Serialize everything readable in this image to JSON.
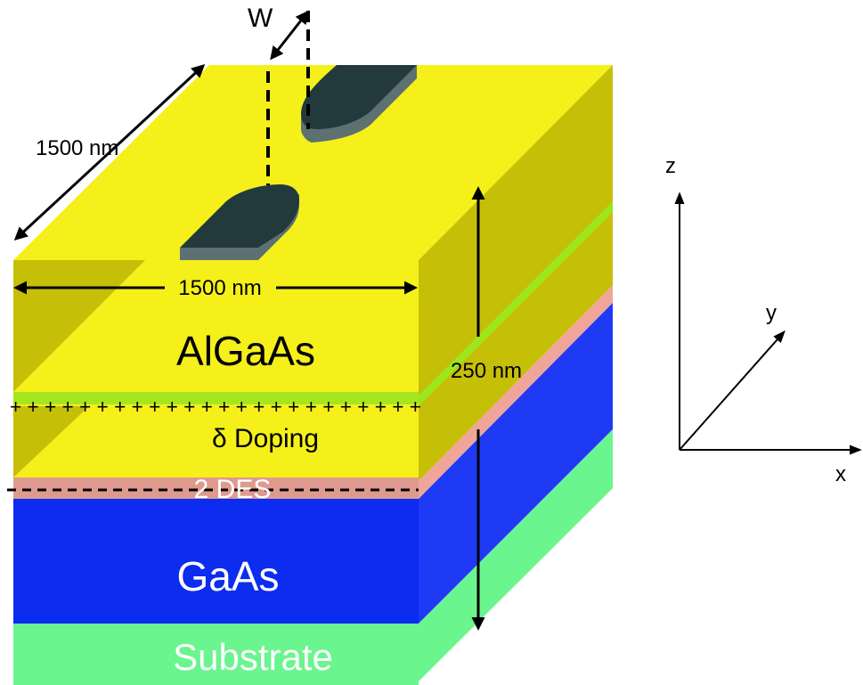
{
  "labels": {
    "w": "W",
    "depth_dim": "1500 nm",
    "width_dim": "1500 nm",
    "thickness_dim": "250 nm",
    "algaas": "AlGaAs",
    "doping_plus": "+ + + + + + + + + + + + + + + + + + + + + + + +",
    "doping": "δ Doping",
    "des": "2 DES",
    "gaas": "GaAs",
    "substrate": "Substrate",
    "axis_z": "z",
    "axis_y": "y",
    "axis_x": "x"
  },
  "colors": {
    "algaas_front": "#f5f01a",
    "algaas_top": "#f5f01a",
    "algaas_side": "#c6bf08",
    "doping_layer": "#a6e61e",
    "doping_side": "#9de51c",
    "des_front": "#df9a8e",
    "des_side": "#f0a59b",
    "gaas_front": "#0c2cf0",
    "gaas_side": "#1e3af5",
    "substrate_front": "#6af58f",
    "substrate_side": "#6af58f",
    "gate": "#223a3c",
    "gate_edge": "#5d7072",
    "line": "#000000"
  }
}
